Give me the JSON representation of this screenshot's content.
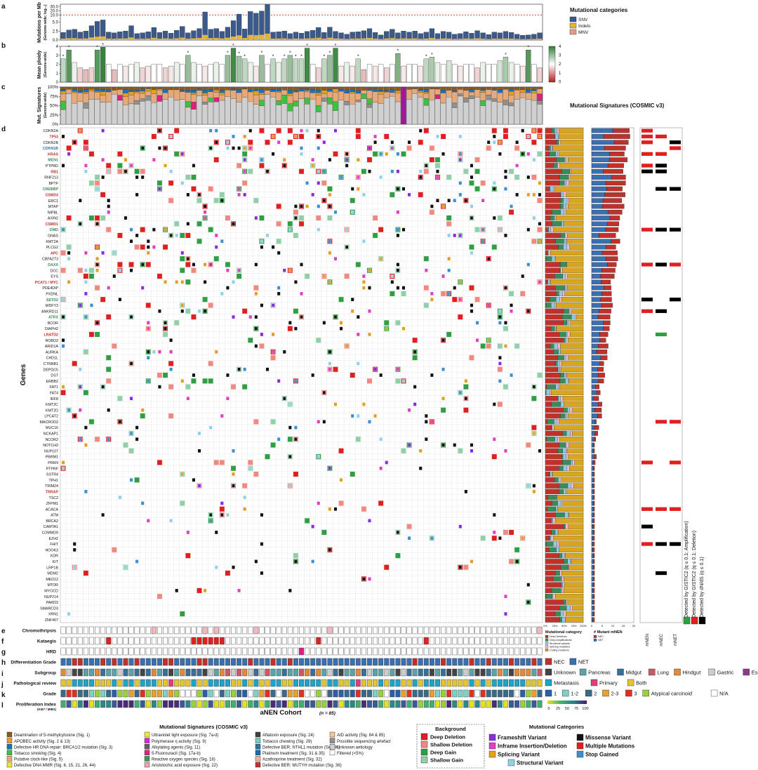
{
  "panel_labels": [
    "a",
    "b",
    "c",
    "d",
    "e",
    "f",
    "g",
    "h",
    "i",
    "j",
    "k",
    "l"
  ],
  "panel_a": {
    "ylabel": "Mutations per Mb",
    "ylabel_sub": "(Genome-wide; log₁₀)",
    "ticks": [
      "30.0",
      "20.0",
      "10.0",
      "5.0",
      "2.5",
      "0.0"
    ],
    "legend_title": "Mutational categories",
    "legend": [
      {
        "label": "SNV",
        "color": "#3a5a8c"
      },
      {
        "label": "Indels",
        "color": "#e3b43a"
      },
      {
        "label": "MNV",
        "color": "#e89a8a"
      }
    ]
  },
  "panel_b": {
    "ylabel": "Mean ploidy",
    "ylabel_sub": "(Genome-wide)",
    "ticks": [
      "4",
      "3",
      "2",
      "1",
      "0"
    ],
    "scale_ticks": [
      "4",
      "3",
      "2",
      "1",
      "0"
    ],
    "star": "*"
  },
  "panel_c": {
    "ylabel": "Mut. Signatures",
    "ylabel_sub": "(Genome-wide)",
    "ticks": [
      "100%",
      "75%",
      "50%",
      "25%",
      "0%"
    ],
    "side_title": "Mutational Signatures (COSMIC v3)"
  },
  "panel_d": {
    "ylabel": "Genes",
    "genes": [
      {
        "name": "CDKN2A",
        "color": "#111111"
      },
      {
        "name": "TP53",
        "color": "#c0312b"
      },
      {
        "name": "CDKN2B",
        "color": "#111111"
      },
      {
        "name": "CDKN1B",
        "color": "#2a6cb0"
      },
      {
        "name": "KRAS",
        "color": "#c0312b"
      },
      {
        "name": "MEN1",
        "color": "#3a8a5a"
      },
      {
        "name": "PTPRD",
        "color": "#111111"
      },
      {
        "name": "RB1",
        "color": "#c0312b"
      },
      {
        "name": "RNF213",
        "color": "#111111"
      },
      {
        "name": "BPTF",
        "color": "#111111"
      },
      {
        "name": "CREBBP",
        "color": "#3a8a5a"
      },
      {
        "name": "CSMD3",
        "color": "#c0312b"
      },
      {
        "name": "ERC1",
        "color": "#111111"
      },
      {
        "name": "MTAP",
        "color": "#111111"
      },
      {
        "name": "NIPBL",
        "color": "#111111"
      },
      {
        "name": "AXIN2",
        "color": "#111111"
      },
      {
        "name": "CSMD1",
        "color": "#c0312b"
      },
      {
        "name": "DMD",
        "color": "#3a8a5a"
      },
      {
        "name": "GNAS",
        "color": "#111111"
      },
      {
        "name": "KMT2A",
        "color": "#111111"
      },
      {
        "name": "PLCG2",
        "color": "#111111"
      },
      {
        "name": "APC",
        "color": "#c0312b"
      },
      {
        "name": "CBFA2T3",
        "color": "#111111"
      },
      {
        "name": "DAXX",
        "color": "#3a8a5a"
      },
      {
        "name": "DCC",
        "color": "#111111"
      },
      {
        "name": "EYS",
        "color": "#111111"
      },
      {
        "name": "PCAT1 / MYC",
        "color": "#c0312b"
      },
      {
        "name": "PDE4DIP",
        "color": "#111111"
      },
      {
        "name": "PXDNL",
        "color": "#111111"
      },
      {
        "name": "SETD2",
        "color": "#3a8a5a"
      },
      {
        "name": "WDFY3",
        "color": "#111111"
      },
      {
        "name": "ANKRD11",
        "color": "#111111"
      },
      {
        "name": "ATRX",
        "color": "#3a8a5a"
      },
      {
        "name": "BCOR",
        "color": "#111111"
      },
      {
        "name": "DIAPH2",
        "color": "#111111"
      },
      {
        "name": "LRATD2",
        "color": "#c0312b"
      },
      {
        "name": "ROBO2",
        "color": "#111111"
      },
      {
        "name": "ARID1A",
        "color": "#111111"
      },
      {
        "name": "AURKA",
        "color": "#111111"
      },
      {
        "name": "CHD1L",
        "color": "#111111"
      },
      {
        "name": "CTNNB1",
        "color": "#111111"
      },
      {
        "name": "DEPDC5",
        "color": "#111111"
      },
      {
        "name": "DST",
        "color": "#111111"
      },
      {
        "name": "ERBB2",
        "color": "#111111"
      },
      {
        "name": "FAT1",
        "color": "#111111"
      },
      {
        "name": "FAT4",
        "color": "#111111"
      },
      {
        "name": "IRF8",
        "color": "#111111"
      },
      {
        "name": "KMT2C",
        "color": "#111111"
      },
      {
        "name": "KMT2D",
        "color": "#111111"
      },
      {
        "name": "LPCAT2",
        "color": "#111111"
      },
      {
        "name": "MACROD2",
        "color": "#111111"
      },
      {
        "name": "MUC16",
        "color": "#111111"
      },
      {
        "name": "NCKAP1",
        "color": "#111111"
      },
      {
        "name": "NCOR2",
        "color": "#111111"
      },
      {
        "name": "NOTCH3",
        "color": "#111111"
      },
      {
        "name": "NUP107",
        "color": "#111111"
      },
      {
        "name": "PBRM1",
        "color": "#111111"
      },
      {
        "name": "PRKN",
        "color": "#111111"
      },
      {
        "name": "PTPRF",
        "color": "#111111"
      },
      {
        "name": "SSTR4",
        "color": "#111111"
      },
      {
        "name": "TPH1",
        "color": "#111111"
      },
      {
        "name": "TRIM24",
        "color": "#111111"
      },
      {
        "name": "TRRAP",
        "color": "#c0312b"
      },
      {
        "name": "TSC2",
        "color": "#111111"
      },
      {
        "name": "ZFPM1",
        "color": "#111111"
      },
      {
        "name": "ACACA",
        "color": "#111111"
      },
      {
        "name": "ATM",
        "color": "#111111"
      },
      {
        "name": "BRCA2",
        "color": "#111111"
      },
      {
        "name": "CAMTA1",
        "color": "#111111"
      },
      {
        "name": "COMMD9",
        "color": "#111111"
      },
      {
        "name": "EZH2",
        "color": "#111111"
      },
      {
        "name": "FHIT",
        "color": "#111111"
      },
      {
        "name": "HOOK3",
        "color": "#111111"
      },
      {
        "name": "KDR",
        "color": "#111111"
      },
      {
        "name": "KIT",
        "color": "#111111"
      },
      {
        "name": "LRP1B",
        "color": "#111111"
      },
      {
        "name": "MDM2",
        "color": "#111111"
      },
      {
        "name": "MED12",
        "color": "#111111"
      },
      {
        "name": "MTOR",
        "color": "#111111"
      },
      {
        "name": "MYOCD",
        "color": "#111111"
      },
      {
        "name": "NUP214",
        "color": "#111111"
      },
      {
        "name": "PARD3",
        "color": "#111111"
      },
      {
        "name": "SMARCD3",
        "color": "#111111"
      },
      {
        "name": "XRN1",
        "color": "#111111"
      },
      {
        "name": "ZNF407",
        "color": "#111111"
      }
    ],
    "mutcat_axis": [
      "0%",
      "25%",
      "50%",
      "75%",
      "100%"
    ],
    "mutcat_title": "Mutational category",
    "mutcat_legend": [
      {
        "label": "Deep Deletions",
        "color": "#c0312b"
      },
      {
        "label": "Deep Amplifications",
        "color": "#3a8a5a"
      },
      {
        "label": "Structural variants",
        "color": "#8fc9e8"
      },
      {
        "label": "Splicing mutations",
        "color": "#f4b8c0"
      },
      {
        "label": "Coding mutations",
        "color": "#d9a520"
      }
    ],
    "mutant_axis": [
      "0",
      "5",
      "10",
      "15",
      "20"
    ],
    "mutant_title": "# Mutant mNEN",
    "mutant_legend": [
      {
        "label": "NEC",
        "color": "#c0312b"
      },
      {
        "label": "NET",
        "color": "#3a6fb0"
      }
    ],
    "detect_cols": [
      "mNEN",
      "mNEC",
      "mNET"
    ],
    "detect_labels": [
      "Detected by GISTIC2 (q ≤ 0.1; Amplification)",
      "Detected by GISTIC2 (q ≤ 0.1; Deletion)",
      "Detected by dN/dS (q ≤ 0.1)"
    ],
    "detect_colors": [
      "#2ea043",
      "#e02020",
      "#000000"
    ]
  },
  "tracks": [
    {
      "label": "Chromothripsis"
    },
    {
      "label": "Kataegis"
    },
    {
      "label": "HRD"
    },
    {
      "label": "Differentiation Grade"
    },
    {
      "label": "Subgroup"
    },
    {
      "label": "Pathological review"
    },
    {
      "label": "Grade"
    },
    {
      "label": "Proliferation Index",
      "sub": "(Ki67 / MIB1)"
    }
  ],
  "legend_h": [
    {
      "label": "NEC",
      "color": "#c0312b"
    },
    {
      "label": "NET",
      "color": "#3a6fb0"
    }
  ],
  "legend_i": [
    {
      "label": "Unknown",
      "color": "#444444"
    },
    {
      "label": "Pancreas",
      "color": "#5aa3a8"
    },
    {
      "label": "Midgut",
      "color": "#3a6f9a"
    },
    {
      "label": "Lung",
      "color": "#c95a6a"
    },
    {
      "label": "Hindgut",
      "color": "#e08a3c"
    },
    {
      "label": "Gastric",
      "color": "#cccccc"
    },
    {
      "label": "Esophagus",
      "color": "#8a3c8a"
    }
  ],
  "legend_j": [
    {
      "label": "Metastasis",
      "color": "#1fa3c7"
    },
    {
      "label": "Primary",
      "color": "#e0407a"
    },
    {
      "label": "Both",
      "color": "#e3c534"
    }
  ],
  "legend_k": [
    {
      "label": "1",
      "color": "#2a5fa8"
    },
    {
      "label": "1-2",
      "color": "#7fd1c4"
    },
    {
      "label": "2",
      "color": "#3a6a8a"
    },
    {
      "label": "2-3",
      "color": "#e8a030"
    },
    {
      "label": "3",
      "color": "#e03020"
    },
    {
      "label": "Atypical carcinoid",
      "color": "#9ad040"
    },
    {
      "label": "N/A",
      "color": "#ffffff"
    }
  ],
  "legend_l_ticks": [
    "0",
    "25",
    "50",
    "75",
    "100"
  ],
  "cohort_title": "aNEN Cohort",
  "cohort_n": "(n = 85)",
  "sig_legend_title": "Mutational Signatures (COSMIC v3)",
  "sig_legend": [
    {
      "label": "Deamination of 5-methylcytosine (Sig. 1)",
      "color": "#8a5a20"
    },
    {
      "label": "APOBEC activity (Sig. 2 & 13)",
      "color": "#e0a020"
    },
    {
      "label": "Defective HR DNA repair: BRCA1/2 mutation (Sig. 3)",
      "color": "#1a70c0"
    },
    {
      "label": "Tobacco smoking (Sig. 4)",
      "color": "#40c040"
    },
    {
      "label": "Putative clock-like (Sig. 5)",
      "color": "#e8a878"
    },
    {
      "label": "Defective DNA MMR (Sig. 6, 15, 21, 26, 44)",
      "color": "#f0e040"
    },
    {
      "label": "Ultraviolet light exposure (Sig. 7a-d)",
      "color": "#e8e840"
    },
    {
      "label": "Polymerase η activity (Sig. 9)",
      "color": "#e020e0"
    },
    {
      "label": "Alkylating agents (Sig. 11)",
      "color": "#606060"
    },
    {
      "label": "5-Fluorouracil (Sig. 17a-b)",
      "color": "#e02080"
    },
    {
      "label": "Reactive oxygen species (Sig. 18)",
      "color": "#3a9a4a"
    },
    {
      "label": "Aristolochic acid exposure (Sig. 22)",
      "color": "#f0a0b0"
    },
    {
      "label": "Aflatoxin exposure (Sig. 24)",
      "color": "#404040"
    },
    {
      "label": "Tobacco chewing (Sig. 29)",
      "color": "#70d0c0"
    },
    {
      "label": "Defective BER; NTHL1 mutation (Sig. 30)",
      "color": "#3070a0"
    },
    {
      "label": "Platinum treatment (Sig. 31 & 35)",
      "color": "#1070b0"
    },
    {
      "label": "Azathioprine treatment (Sig. 32)",
      "color": "#f0b0a0"
    },
    {
      "label": "Defective BER; MUTYH mutation (Sig. 36)",
      "color": "#c03030"
    },
    {
      "label": "AID activity (Sig. 84 & 85)",
      "color": "#f0c898"
    },
    {
      "label": "Possible sequencing artefact",
      "color": "#909090"
    },
    {
      "label": "Unknown aetiology",
      "color": "#d0d0d0"
    },
    {
      "label": "Filtered (<5%)",
      "color": "#ffffff"
    }
  ],
  "bg_legend_title": "Background",
  "bg_legend": [
    {
      "label": "Deep Deletion",
      "color": "#e02020"
    },
    {
      "label": "Shallow Deletion",
      "color": "#f08a80"
    },
    {
      "label": "Deep Gain",
      "color": "#2ea043"
    },
    {
      "label": "Shallow Gain",
      "color": "#90d0a8"
    }
  ],
  "mc_legend_title": "Mutational Categories",
  "mc_legend": [
    {
      "label": "Frameshift Variant",
      "color": "#8a2be2"
    },
    {
      "label": "Inframe Insertion/Deletion",
      "color": "#e040c0"
    },
    {
      "label": "Splicing Variant",
      "color": "#e3a020"
    },
    {
      "label": "Missense Variant",
      "color": "#111111"
    },
    {
      "label": "Multiple Mutations",
      "color": "#e02020"
    },
    {
      "label": "Stop Gained",
      "color": "#3a90d0"
    },
    {
      "label": "Structural Variant",
      "color": "#90d0e8"
    }
  ],
  "chart_data": {
    "type": "bar",
    "n_samples": 85,
    "panel_a_mutations_per_mb_approx": [
      2.1,
      2.8,
      3.0,
      2.2,
      2.5,
      4.0,
      5.5,
      6.5,
      2.2,
      2.0,
      2.3,
      2.5,
      4.0,
      1.8,
      2.0,
      2.3,
      3.5,
      2.1,
      2.5,
      1.9,
      2.7,
      3.8,
      2.0,
      2.6,
      3.2,
      17,
      3.0,
      3.2,
      2.4,
      3.6,
      6.0,
      12,
      3.1,
      18,
      14,
      19,
      34,
      2.2,
      2.3,
      2.5,
      1.8,
      2.2,
      1.9,
      2.4,
      2.7,
      3.5,
      2.1,
      3.6,
      2.4,
      2.0,
      1.6,
      2.2,
      2.3,
      2.6,
      3.2,
      2.1,
      1.4,
      2.4,
      3.0,
      2.0,
      2.5,
      2.2,
      2.5,
      1.8,
      2.2,
      3.2,
      1.8,
      2.4,
      2.2,
      1.6,
      1.8,
      2.3,
      1.9,
      2.6,
      2.0,
      1.5,
      2.2,
      2.0,
      2.4,
      2.1,
      1.6,
      1.3,
      1.4,
      1.6,
      2.0
    ],
    "panel_a_threshold": 10,
    "panel_b_mean_ploidy_approx": [
      2.6,
      3.6,
      2.2,
      1.6,
      1.4,
      1.6,
      3.6,
      3.9,
      2.0,
      1.4,
      2.0,
      1.8,
      2.0,
      2.2,
      1.6,
      1.8,
      2.0,
      2.0,
      1.6,
      1.8,
      2.2,
      2.0,
      3.0,
      2.2,
      2.0,
      1.8,
      2.0,
      2.2,
      2.0,
      3.0,
      3.8,
      2.9,
      2.6,
      2.2,
      1.8,
      3.0,
      2.0,
      2.6,
      2.2,
      2.6,
      3.0,
      2.6,
      2.6,
      3.8,
      2.0,
      1.6,
      2.6,
      3.0,
      3.8,
      1.8,
      2.2,
      1.8,
      2.6,
      1.4,
      2.0,
      1.8,
      2.0,
      1.6,
      2.0,
      3.2,
      1.8,
      2.0,
      2.0,
      1.8,
      2.6,
      2.8,
      2.2,
      2.0,
      2.4,
      2.0,
      1.8,
      2.0,
      2.0,
      1.6,
      2.2,
      2.0,
      2.0,
      2.4,
      2.8,
      2.2,
      2.0,
      1.8,
      3.6,
      2.0,
      1.6
    ],
    "panel_b_ylim": [
      0,
      4
    ]
  }
}
